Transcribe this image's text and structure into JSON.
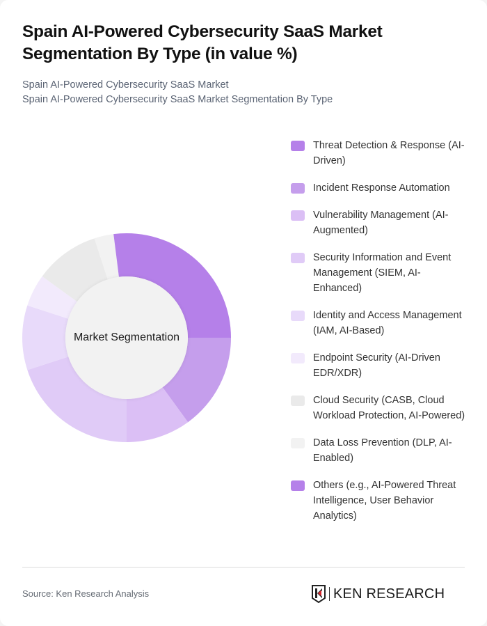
{
  "header": {
    "title": "Spain AI-Powered Cybersecurity SaaS Market Segmentation By Type (in value %)",
    "subtitle_lines": [
      "Spain AI-Powered Cybersecurity SaaS Market",
      "Spain AI-Powered Cybersecurity SaaS Market Segmentation By Type"
    ]
  },
  "chart_data": {
    "type": "pie",
    "subtype": "donut",
    "title": "Spain AI-Powered Cybersecurity SaaS Market Segmentation By Type (in value %)",
    "center_label": "Market Segmentation",
    "start_angle_deg": 0,
    "direction": "clockwise",
    "legend_position": "right",
    "categories": [
      "Threat Detection & Response (AI-Driven)",
      "Incident Response Automation",
      "Vulnerability Management (AI-Augmented)",
      "Security Information and Event Management (SIEM, AI-Enhanced)",
      "Identity and Access Management (IAM, AI-Based)",
      "Endpoint Security (AI-Driven EDR/XDR)",
      "Cloud Security (CASB, Cloud Workload Protection, AI-Powered)",
      "Data Loss Prevention (DLP, AI-Enabled)",
      "Others (e.g., AI-Powered Threat Intelligence, User Behavior Analytics)"
    ],
    "values": [
      25,
      15,
      10,
      20,
      10,
      5,
      10,
      3,
      2
    ],
    "colors": [
      "#b580e9",
      "#c59eec",
      "#dbbff5",
      "#e0cbf7",
      "#e8dafa",
      "#f2eafc",
      "#eaeaea",
      "#f2f2f2",
      "#b580e9"
    ],
    "unit": "%"
  },
  "footer": {
    "source": "Source: Ken Research Analysis",
    "logo_text": "KEN RESEARCH"
  }
}
